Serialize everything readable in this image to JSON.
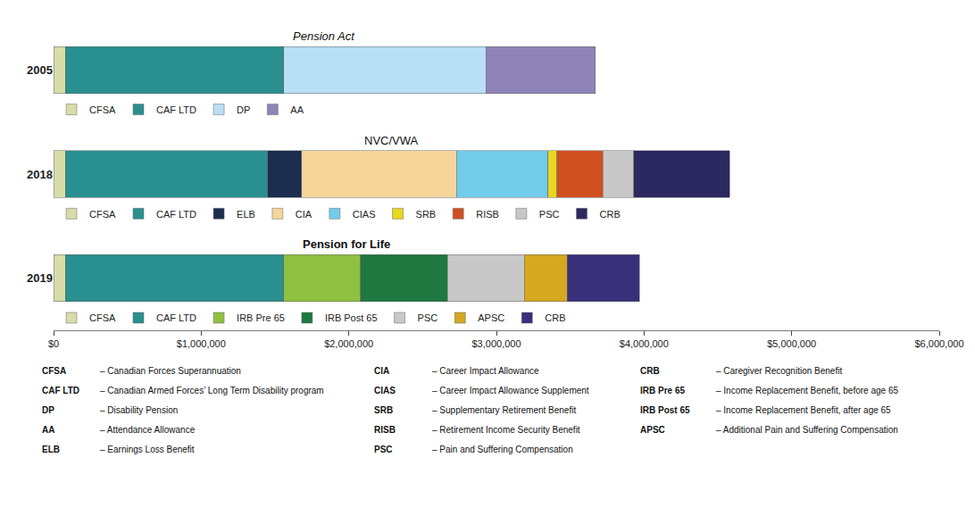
{
  "chart_data": {
    "type": "bar",
    "orientation": "horizontal",
    "stacked": true,
    "grid": false,
    "categories": [
      "2005",
      "2018",
      "2019"
    ],
    "series": [
      {
        "name": "CFSA",
        "color": "#d8dca8",
        "values": [
          80000,
          80000,
          80000
        ]
      },
      {
        "name": "CAF LTD",
        "color": "#2a8f8f",
        "values": [
          1480000,
          1370000,
          1480000
        ]
      },
      {
        "name": "DP",
        "color": "#b8dff5",
        "values": [
          1370000,
          null,
          null
        ]
      },
      {
        "name": "AA",
        "color": "#8e84b8",
        "values": [
          740000,
          null,
          null
        ]
      },
      {
        "name": "ELB",
        "color": "#1c2e50",
        "values": [
          null,
          230000,
          null
        ]
      },
      {
        "name": "CIA",
        "color": "#f5d59a",
        "values": [
          null,
          1050000,
          null
        ]
      },
      {
        "name": "CIAS",
        "color": "#72ccea",
        "values": [
          null,
          620000,
          null
        ]
      },
      {
        "name": "SRB",
        "color": "#e8d820",
        "values": [
          null,
          60000,
          null
        ]
      },
      {
        "name": "RISB",
        "color": "#d05020",
        "values": [
          null,
          310000,
          null
        ]
      },
      {
        "name": "IRB Pre 65",
        "color": "#90c040",
        "values": [
          null,
          null,
          520000
        ]
      },
      {
        "name": "IRB Post 65",
        "color": "#1e7840",
        "values": [
          null,
          null,
          590000
        ]
      },
      {
        "name": "PSC",
        "color": "#c8c8c8",
        "values": [
          null,
          210000,
          520000
        ]
      },
      {
        "name": "APSC",
        "color": "#d4a820",
        "values": [
          null,
          null,
          290000
        ]
      },
      {
        "name": "CRB",
        "colors": [
          null,
          "#2c2860",
          "#38307a"
        ],
        "values": [
          null,
          650000,
          490000
        ]
      }
    ],
    "xlim": [
      0,
      6000000
    ],
    "xticks": [
      {
        "value": 0,
        "label": "$0"
      },
      {
        "value": 1000000,
        "label": "$1,000,000"
      },
      {
        "value": 2000000,
        "label": "$2,000,000"
      },
      {
        "value": 3000000,
        "label": "$3,000,000"
      },
      {
        "value": 4000000,
        "label": "$4,000,000"
      },
      {
        "value": 5000000,
        "label": "$5,000,000"
      },
      {
        "value": 6000000,
        "label": "$6,000,000"
      }
    ],
    "annotations": [
      {
        "text": "Pension Act",
        "category": "2005"
      },
      {
        "text": "NVC/VWA",
        "category": "2018"
      },
      {
        "text": "Pension for Life",
        "category": "2019"
      },
      {
        "term": "CFSA",
        "text": "– Canadian Forces Superannuation"
      },
      {
        "term": "CAF LTD",
        "text": "– Canadian Armed Forces’ Long Term Disability program"
      },
      {
        "term": "DP",
        "text": "– Disability Pension"
      },
      {
        "term": "AA",
        "text": "– Attendance Allowance"
      },
      {
        "term": "ELB",
        "text": "– Earnings Loss Benefit"
      },
      {
        "term": "CIA",
        "text": "– Career Impact Allowance"
      },
      {
        "term": "CIAS",
        "text": "– Career Impact Allowance Supplement"
      },
      {
        "term": "SRB",
        "text": "– Supplementary Retirement Benefit"
      },
      {
        "term": "RISB",
        "text": "– Retirement Income Security Benefit"
      },
      {
        "term": "PSC",
        "text": "– Pain and Suffering Compensation"
      },
      {
        "term": "CRB",
        "text": "– Caregiver Recognition Benefit"
      },
      {
        "term": "IRB Pre 65",
        "text": "– Income Replacement Benefit, before age 65"
      },
      {
        "term": "IRB Post 65",
        "text": "– Income Replacement Benefit, after age 65"
      },
      {
        "term": "APSC",
        "text": "– Additional Pain and Suffering Compensation"
      }
    ]
  }
}
